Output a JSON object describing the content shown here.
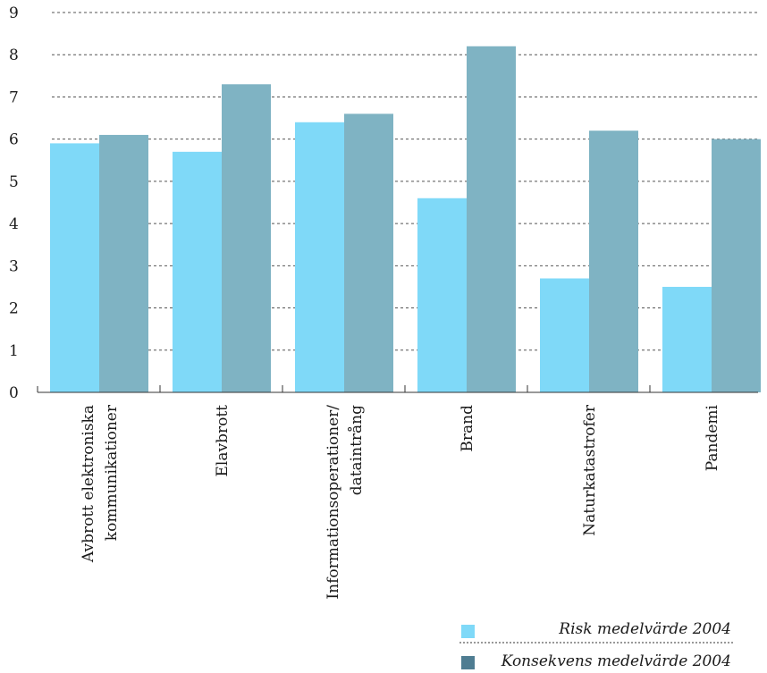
{
  "chart_data": {
    "type": "bar",
    "categories": [
      [
        "Avbrott elektroniska",
        "kommunikationer"
      ],
      [
        "Elavbrott"
      ],
      [
        "Informationsoperationer/",
        "dataintrång"
      ],
      [
        "Brand"
      ],
      [
        "Naturkatastrofer"
      ],
      [
        "Pandemi"
      ]
    ],
    "series": [
      {
        "name": "Risk medelvärde 2004",
        "values": [
          5.9,
          5.7,
          6.4,
          4.6,
          2.7,
          2.5
        ],
        "color": "#7fd9f8",
        "legend_swatch": "#7fd9f8"
      },
      {
        "name": "Konsekvens medelvärde 2004",
        "values": [
          6.1,
          7.3,
          6.6,
          8.2,
          6.2,
          6.0
        ],
        "color": "#7fb3c3",
        "legend_swatch": "#4f7d92"
      }
    ],
    "yticks": [
      "0",
      "1",
      "2",
      "3",
      "4",
      "5",
      "6",
      "7",
      "8",
      "9"
    ],
    "ylim": [
      0,
      9
    ],
    "grid": "dashed horizontal",
    "legend_position": "bottom-right",
    "title": "",
    "xlabel": "",
    "ylabel": ""
  }
}
